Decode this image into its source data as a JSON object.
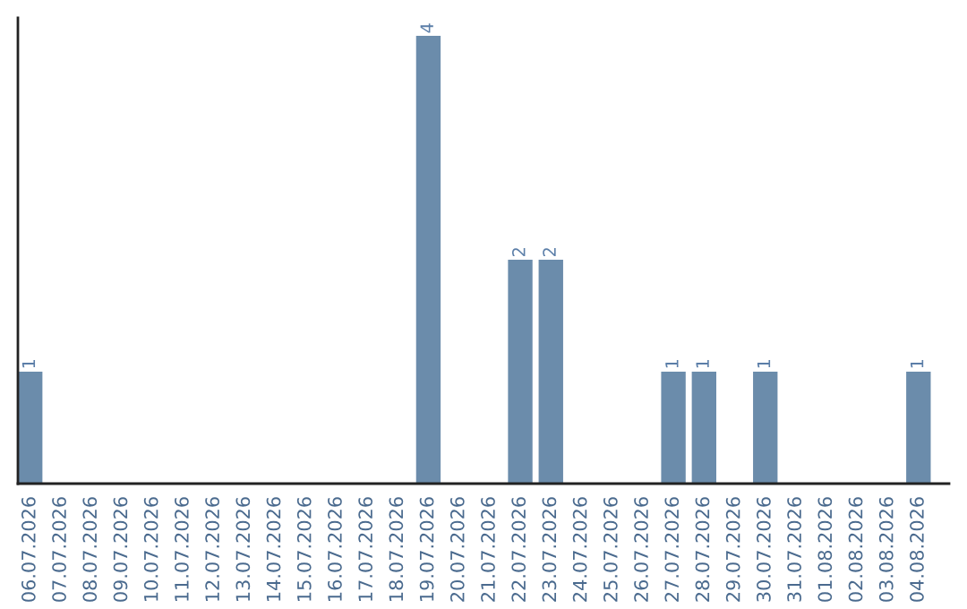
{
  "chart_data": {
    "type": "bar",
    "categories": [
      "06.07.2026",
      "07.07.2026",
      "08.07.2026",
      "09.07.2026",
      "10.07.2026",
      "11.07.2026",
      "12.07.2026",
      "13.07.2026",
      "14.07.2026",
      "15.07.2026",
      "16.07.2026",
      "17.07.2026",
      "18.07.2026",
      "19.07.2026",
      "20.07.2026",
      "21.07.2026",
      "22.07.2026",
      "23.07.2026",
      "24.07.2026",
      "25.07.2026",
      "26.07.2026",
      "27.07.2026",
      "28.07.2026",
      "29.07.2026",
      "30.07.2026",
      "31.07.2026",
      "01.08.2026",
      "02.08.2026",
      "03.08.2026",
      "04.08.2026"
    ],
    "values": [
      1,
      0,
      0,
      0,
      0,
      0,
      0,
      0,
      0,
      0,
      0,
      0,
      0,
      4,
      0,
      0,
      2,
      2,
      0,
      0,
      0,
      1,
      1,
      0,
      1,
      0,
      0,
      0,
      0,
      1
    ],
    "value_labels": [
      "1",
      null,
      null,
      null,
      null,
      null,
      null,
      null,
      null,
      null,
      null,
      null,
      null,
      "4",
      null,
      null,
      "2",
      "2",
      null,
      null,
      null,
      "1",
      "1",
      null,
      "1",
      null,
      null,
      null,
      null,
      "1"
    ],
    "color": "#6b8cab",
    "tick_labels": "x",
    "grid": false,
    "legend": false
  }
}
